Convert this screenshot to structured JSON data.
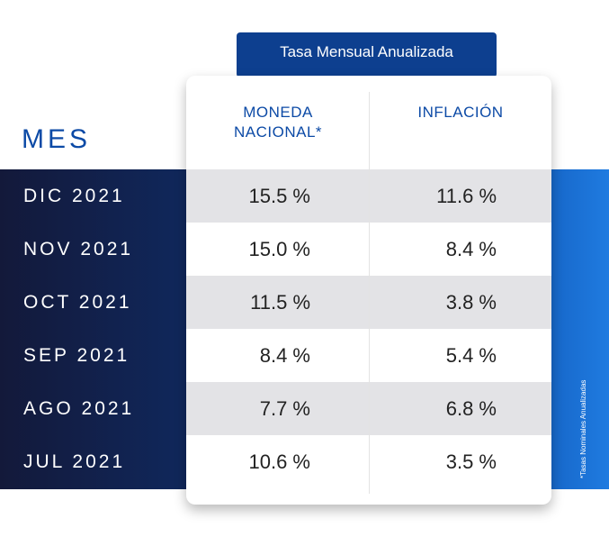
{
  "header": {
    "title": "Tasa Mensual Anualizada"
  },
  "columns": {
    "month": "MES",
    "moneda": "MONEDA NACIONAL*",
    "inflacion": "INFLACIÓN"
  },
  "rows": [
    {
      "month": "DIC 2021",
      "moneda": "15.5 %",
      "inflacion": "11.6 %"
    },
    {
      "month": "NOV 2021",
      "moneda": "15.0 %",
      "inflacion": "8.4 %"
    },
    {
      "month": "OCT 2021",
      "moneda": "11.5 %",
      "inflacion": "3.8 %"
    },
    {
      "month": "SEP 2021",
      "moneda": "8.4 %",
      "inflacion": "5.4 %"
    },
    {
      "month": "AGO 2021",
      "moneda": "7.7 %",
      "inflacion": "6.8 %"
    },
    {
      "month": "JUL 2021",
      "moneda": "10.6 %",
      "inflacion": "3.5 %"
    }
  ],
  "footnote": "*Tasas Nominales Anualizadas",
  "colors": {
    "accent": "#0c4aa6",
    "band_dark": "#13193a",
    "band_light": "#1f7be0",
    "row_shade": "#e3e3e6"
  }
}
